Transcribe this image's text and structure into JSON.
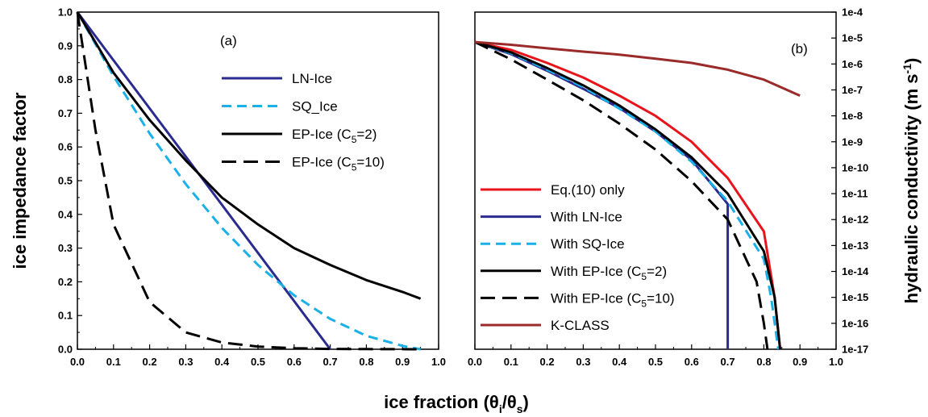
{
  "xlabel": "ice fraction (θi/θs)",
  "chart_data": [
    {
      "type": "line",
      "panel_label": "(a)",
      "xlabel": "ice fraction (θi/θs)",
      "ylabel": "ice impedance factor",
      "xlim": [
        0,
        1
      ],
      "ylim": [
        0,
        1
      ],
      "x_ticks": [
        "0.0",
        "0.1",
        "0.2",
        "0.3",
        "0.4",
        "0.5",
        "0.6",
        "0.7",
        "0.8",
        "0.9",
        "1.0"
      ],
      "y_ticks": [
        "0.0",
        "0.1",
        "0.2",
        "0.3",
        "0.4",
        "0.5",
        "0.6",
        "0.7",
        "0.8",
        "0.9",
        "1.0"
      ],
      "legend_position": "upper-right",
      "series": [
        {
          "name": "LN-Ice",
          "legend_text": "LN-Ice",
          "color": "#2b2b8f",
          "dash": "solid",
          "x": [
            0,
            0.7
          ],
          "y": [
            1,
            0
          ]
        },
        {
          "name": "SQ_Ice",
          "legend_text": "SQ_Ice",
          "color": "#1ab0e8",
          "dash": "dashed",
          "x": [
            0,
            0.1,
            0.2,
            0.3,
            0.4,
            0.5,
            0.6,
            0.7,
            0.8,
            0.9,
            0.95
          ],
          "y": [
            1,
            0.81,
            0.64,
            0.49,
            0.36,
            0.25,
            0.16,
            0.09,
            0.04,
            0.01,
            0.0
          ]
        },
        {
          "name": "EP-Ice (C5=2)",
          "legend_text": "EP-Ice (C",
          "legend_sub": "5",
          "legend_tail": "=2)",
          "color": "#000000",
          "dash": "solid",
          "x": [
            0,
            0.1,
            0.2,
            0.3,
            0.4,
            0.5,
            0.6,
            0.7,
            0.8,
            0.9,
            0.95
          ],
          "y": [
            1,
            0.82,
            0.68,
            0.56,
            0.45,
            0.37,
            0.3,
            0.25,
            0.205,
            0.17,
            0.15
          ]
        },
        {
          "name": "EP-Ice (C5=10)",
          "legend_text": "EP-Ice (C",
          "legend_sub": "5",
          "legend_tail": "=10)",
          "color": "#000000",
          "dash": "longdash",
          "x": [
            0,
            0.05,
            0.1,
            0.2,
            0.3,
            0.4,
            0.5,
            0.6,
            0.7,
            0.8,
            0.9,
            0.95
          ],
          "y": [
            1,
            0.65,
            0.37,
            0.14,
            0.05,
            0.02,
            0.008,
            0.003,
            0.001,
            0.0005,
            0.0002,
            0.0001
          ]
        }
      ]
    },
    {
      "type": "line",
      "panel_label": "(b)",
      "xlabel": "ice fraction (θi/θs)",
      "ylabel": "hydraulic conductivity (m s-1)",
      "y_scale": "log",
      "xlim": [
        0,
        1
      ],
      "ylim": [
        1e-17,
        0.0001
      ],
      "x_ticks": [
        "0.0",
        "0.1",
        "0.2",
        "0.3",
        "0.4",
        "0.5",
        "0.6",
        "0.7",
        "0.8",
        "0.9",
        "1.0"
      ],
      "y_ticks": [
        "1e-17",
        "1e-16",
        "1e-15",
        "1e-14",
        "1e-13",
        "1e-12",
        "1e-11",
        "1e-10",
        "1e-9",
        "1e-8",
        "1e-7",
        "1e-6",
        "1e-5",
        "1e-4"
      ],
      "legend_position": "lower-left",
      "series": [
        {
          "name": "Eq.(10) only",
          "legend_text": "Eq.(10) only",
          "color": "#e8141c",
          "dash": "solid",
          "x": [
            0,
            0.1,
            0.2,
            0.3,
            0.4,
            0.5,
            0.6,
            0.7,
            0.8,
            0.83,
            0.845
          ],
          "y": [
            7e-06,
            3.5e-06,
            1.1e-06,
            3e-07,
            6e-08,
            1e-08,
            1e-09,
            4e-11,
            3.5e-13,
            1e-15,
            1e-17
          ]
        },
        {
          "name": "With LN-Ice",
          "legend_text": "With LN-Ice",
          "color": "#2b2b8f",
          "dash": "solid",
          "x": [
            0,
            0.1,
            0.2,
            0.3,
            0.4,
            0.5,
            0.6,
            0.7,
            0.7
          ],
          "y": [
            7e-06,
            2.4e-06,
            5.5e-07,
            1.1e-07,
            2e-08,
            2.5e-09,
            2e-10,
            4e-12,
            1e-17
          ]
        },
        {
          "name": "With SQ-Ice",
          "legend_text": "With SQ-Ice",
          "color": "#1ab0e8",
          "dash": "dashed",
          "x": [
            0,
            0.1,
            0.2,
            0.3,
            0.4,
            0.5,
            0.6,
            0.7,
            0.8,
            0.82,
            0.84
          ],
          "y": [
            7e-06,
            2.6e-06,
            6e-07,
            1.3e-07,
            1.9e-08,
            2.5e-09,
            1.7e-10,
            5e-12,
            3e-14,
            1e-15,
            1e-17
          ]
        },
        {
          "name": "With EP-Ice (C5=2)",
          "legend_text": "With EP-Ice (C",
          "legend_sub": "5",
          "legend_tail": "=2)",
          "color": "#000000",
          "dash": "solid",
          "x": [
            0,
            0.1,
            0.2,
            0.3,
            0.4,
            0.5,
            0.6,
            0.7,
            0.8,
            0.83,
            0.845
          ],
          "y": [
            7e-06,
            2.8e-06,
            7e-07,
            1.5e-07,
            2.5e-08,
            3e-09,
            2.5e-10,
            1e-11,
            6e-14,
            1e-15,
            1e-17
          ]
        },
        {
          "name": "With EP-Ice (C5=10)",
          "legend_text": "With EP-Ice (C",
          "legend_sub": "5",
          "legend_tail": "=10)",
          "color": "#000000",
          "dash": "longdash",
          "x": [
            0,
            0.1,
            0.2,
            0.3,
            0.4,
            0.5,
            0.6,
            0.7,
            0.78,
            0.8,
            0.81
          ],
          "y": [
            7e-06,
            1.5e-06,
            2.5e-07,
            4e-08,
            5e-09,
            5e-10,
            3e-11,
            1e-12,
            4e-15,
            1e-16,
            1e-17
          ]
        },
        {
          "name": "K-CLASS",
          "legend_text": "K-CLASS",
          "color": "#9b2a2a",
          "dash": "solid",
          "x": [
            0,
            0.1,
            0.2,
            0.3,
            0.4,
            0.5,
            0.6,
            0.7,
            0.8,
            0.9
          ],
          "y": [
            7e-06,
            5.5e-06,
            4e-06,
            3e-06,
            2.3e-06,
            1.6e-06,
            1.1e-06,
            6e-07,
            2.5e-07,
            6e-08
          ]
        }
      ]
    }
  ]
}
